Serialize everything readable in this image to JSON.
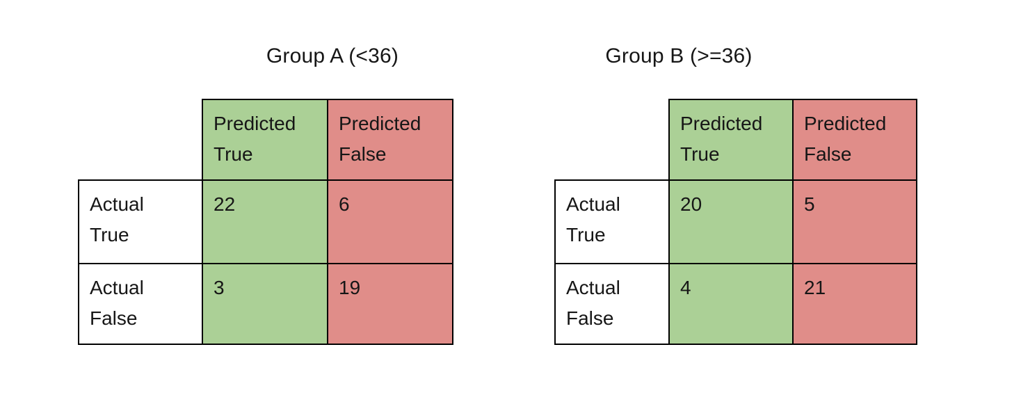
{
  "colors": {
    "page_bg": "#ffffff",
    "cell_bg": "#ffffff",
    "positive": "#abd096",
    "negative": "#e08d89",
    "border": "#000000",
    "text": "#161616"
  },
  "chart_data": {
    "type": "table",
    "subtype": "confusion-matrix-pair",
    "matrices": [
      {
        "title": "Group A (<36)",
        "col_headers": [
          {
            "lines": [
              "Predicted",
              "True"
            ],
            "tone": "positive"
          },
          {
            "lines": [
              "Predicted",
              "False"
            ],
            "tone": "negative"
          }
        ],
        "rows": [
          {
            "label_lines": [
              "Actual",
              "True"
            ],
            "values": [
              "22",
              "6"
            ]
          },
          {
            "label_lines": [
              "Actual",
              "False"
            ],
            "values": [
              "3",
              "19"
            ]
          }
        ]
      },
      {
        "title": "Group B (>=36)",
        "col_headers": [
          {
            "lines": [
              "Predicted",
              "True"
            ],
            "tone": "positive"
          },
          {
            "lines": [
              "Predicted",
              "False"
            ],
            "tone": "negative"
          }
        ],
        "rows": [
          {
            "label_lines": [
              "Actual",
              "True"
            ],
            "values": [
              "20",
              "5"
            ]
          },
          {
            "label_lines": [
              "Actual",
              "False"
            ],
            "values": [
              "4",
              "21"
            ]
          }
        ]
      }
    ]
  }
}
